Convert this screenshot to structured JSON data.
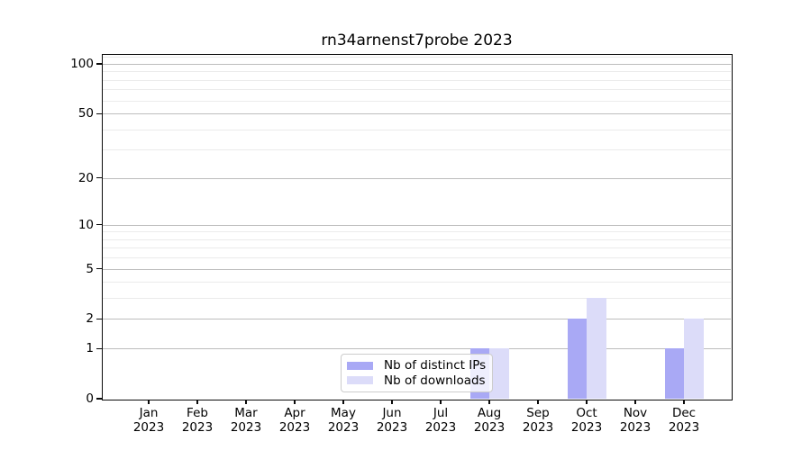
{
  "figure": {
    "background": "#ffffff"
  },
  "chart_data": {
    "type": "bar",
    "title": "rn34arnenst7probe 2023",
    "categories": [
      "Jan",
      "Feb",
      "Mar",
      "Apr",
      "May",
      "Jun",
      "Jul",
      "Aug",
      "Sep",
      "Oct",
      "Nov",
      "Dec"
    ],
    "category_year": "2023",
    "series": [
      {
        "name": "Nb of distinct IPs",
        "color": "#a9a9f5",
        "values": [
          0,
          0,
          0,
          0,
          0,
          0,
          0,
          1,
          0,
          2,
          0,
          1
        ]
      },
      {
        "name": "Nb of downloads",
        "color": "#dcdcf9",
        "values": [
          0,
          0,
          0,
          0,
          0,
          0,
          0,
          1,
          0,
          3,
          0,
          2
        ]
      }
    ],
    "xlabel": "",
    "ylabel": "",
    "y_scale": "log1p",
    "ylim": [
      0,
      113
    ],
    "y_major_ticks": [
      0,
      1,
      2,
      5,
      10,
      20,
      50,
      100
    ],
    "y_minor_ticks": [
      3,
      4,
      6,
      7,
      8,
      9,
      30,
      40,
      60,
      70,
      80,
      90,
      110
    ],
    "grid": {
      "major_color": "#bdbdbd",
      "minor_color": "#ebebeb"
    },
    "legend_position": "lower center"
  }
}
